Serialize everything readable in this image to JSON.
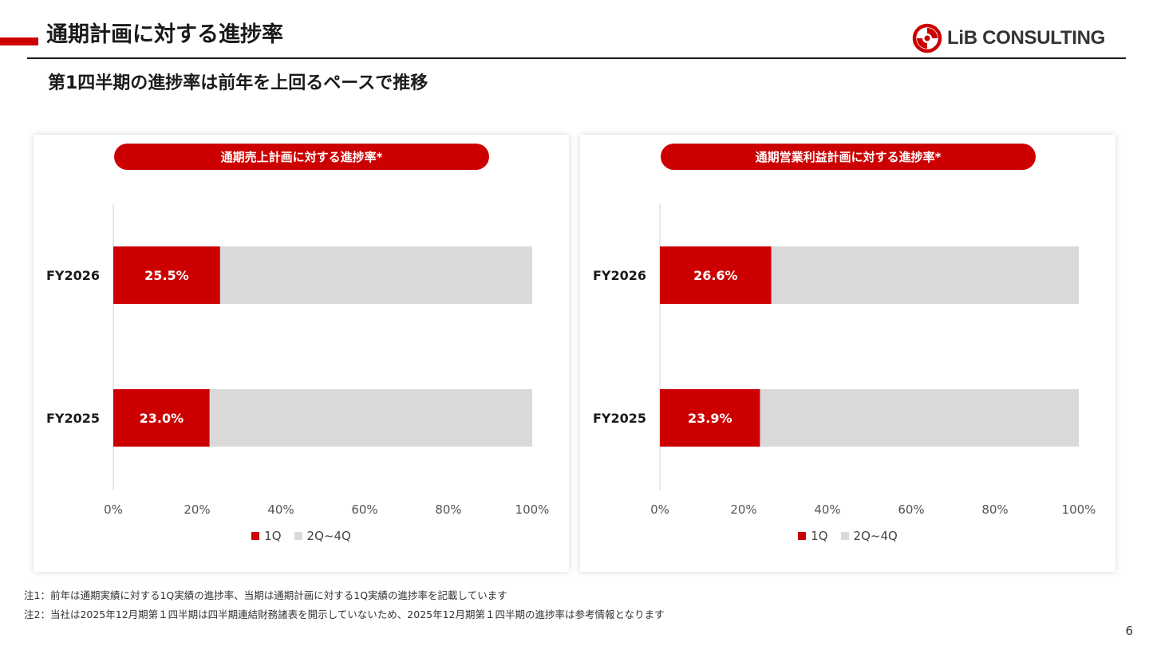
{
  "header": {
    "title": "通期計画に対する進捗率",
    "logo_text": "LiB CONSULTING",
    "accent_color": "#cc0000"
  },
  "subtitle": "第1四半期の進捗率は前年を上回るペースで推移",
  "panels": [
    {
      "title": "通期売上計画に対する進捗率*"
    },
    {
      "title": "通期営業利益計画に対する進捗率*"
    }
  ],
  "legend": {
    "q1": "1Q",
    "rest": "2Q~4Q"
  },
  "chart_data": [
    {
      "type": "bar",
      "orientation": "horizontal",
      "stacked": true,
      "title": "通期売上計画に対する進捗率*",
      "categories": [
        "FY2026",
        "FY2025"
      ],
      "series": [
        {
          "name": "1Q",
          "values": [
            25.5,
            23.0
          ],
          "color": "#cc0000",
          "labels": [
            "25.5%",
            "23.0%"
          ]
        },
        {
          "name": "2Q~4Q",
          "values": [
            74.5,
            77.0
          ],
          "color": "#d9d9d9"
        }
      ],
      "xlim": [
        0,
        100
      ],
      "x_ticks": [
        "0%",
        "20%",
        "40%",
        "60%",
        "80%",
        "100%"
      ],
      "legend_position": "bottom"
    },
    {
      "type": "bar",
      "orientation": "horizontal",
      "stacked": true,
      "title": "通期営業利益計画に対する進捗率*",
      "categories": [
        "FY2026",
        "FY2025"
      ],
      "series": [
        {
          "name": "1Q",
          "values": [
            26.6,
            23.9
          ],
          "color": "#cc0000",
          "labels": [
            "26.6%",
            "23.9%"
          ]
        },
        {
          "name": "2Q~4Q",
          "values": [
            73.4,
            76.1
          ],
          "color": "#d9d9d9"
        }
      ],
      "xlim": [
        0,
        100
      ],
      "x_ticks": [
        "0%",
        "20%",
        "40%",
        "60%",
        "80%",
        "100%"
      ],
      "legend_position": "bottom"
    }
  ],
  "notes": [
    "注1：前年は通期実績に対する1Q実績の進捗率、当期は通期計画に対する1Q実績の進捗率を記載しています",
    "注2：当社は2025年12月期第１四半期は四半期連結財務諸表を開示していないため、2025年12月期第１四半期の進捗率は参考情報となります"
  ],
  "page_number": "6"
}
